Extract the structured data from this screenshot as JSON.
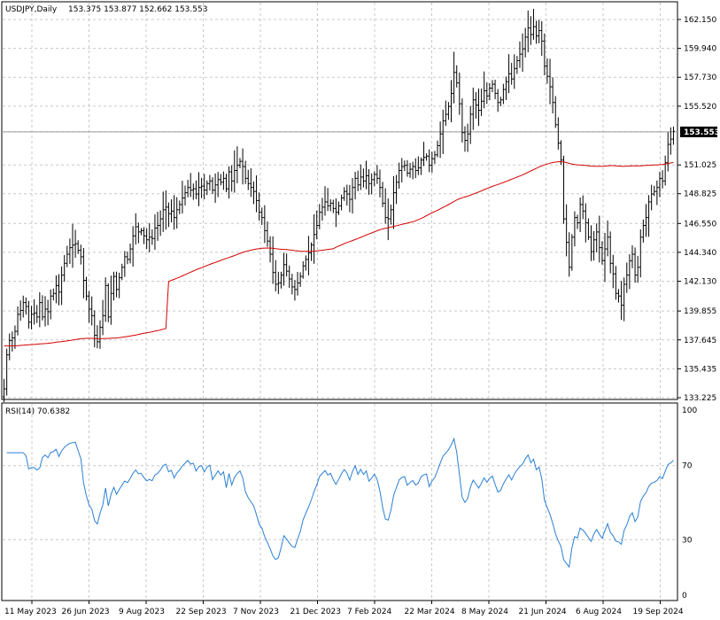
{
  "header": {
    "symbol": "USDJPY,Daily",
    "ohlc": "153.375 153.877 152.662 153.553"
  },
  "price_badge": "153.553",
  "rsi_header": "RSI(14) 70.6382",
  "colors": {
    "candle": "#000000",
    "ma": "#d40000",
    "rsi": "#2a7fd4",
    "grid": "#c8c8c8",
    "badge_bg": "#000000",
    "badge_fg": "#ffffff",
    "price_line": "#9a9a9a"
  },
  "chart_data": [
    {
      "type": "line",
      "title": "USDJPY,Daily",
      "subtype": "ohlc-bars",
      "price_ticks": [
        "162.150",
        "159.940",
        "157.730",
        "155.520",
        "153.553",
        "151.025",
        "148.825",
        "146.550",
        "144.340",
        "142.130",
        "139.855",
        "137.645",
        "135.435",
        "133.225"
      ],
      "x_tick_labels": [
        "11 May 2023",
        "26 Jun 2023",
        "9 Aug 2023",
        "22 Sep 2023",
        "7 Nov 2023",
        "21 Dec 2023",
        "7 Feb 2024",
        "22 Mar 2024",
        "8 May 2024",
        "21 Jun 2024",
        "6 Aug 2024",
        "19 Sep 2024"
      ],
      "ylim": [
        133.225,
        162.15
      ],
      "last_price": 153.553,
      "closes": [
        133.9,
        136.5,
        137.6,
        137.8,
        138.3,
        139.6,
        139.9,
        140.5,
        140.2,
        139.0,
        139.6,
        139.7,
        139.4,
        140.5,
        139.4,
        140.0,
        139.8,
        141.0,
        141.2,
        141.8,
        141.3,
        142.6,
        143.5,
        144.2,
        144.7,
        144.9,
        145.0,
        144.5,
        144.0,
        142.2,
        141.0,
        140.0,
        139.5,
        138.0,
        137.5,
        138.6,
        139.5,
        141.8,
        139.4,
        141.2,
        142.5,
        141.5,
        142.4,
        143.2,
        144.0,
        143.8,
        144.6,
        145.6,
        146.3,
        145.9,
        146.0,
        145.6,
        145.3,
        145.5,
        145.4,
        146.2,
        146.4,
        146.9,
        147.6,
        147.8,
        147.3,
        147.5,
        147.0,
        147.6,
        148.0,
        148.5,
        148.9,
        149.3,
        149.1,
        149.2,
        148.8,
        149.3,
        149.4,
        149.1,
        149.6,
        149.8,
        149.1,
        149.5,
        149.9,
        149.7,
        150.0,
        149.2,
        150.5,
        149.8,
        150.6,
        151.0,
        151.3,
        150.9,
        150.0,
        149.6,
        149.3,
        149.0,
        148.3,
        147.4,
        147.0,
        146.0,
        145.2,
        144.2,
        142.8,
        141.9,
        142.0,
        142.6,
        143.4,
        142.9,
        142.3,
        141.7,
        141.5,
        142.0,
        142.5,
        143.3,
        143.8,
        144.3,
        144.9,
        145.7,
        146.4,
        147.4,
        147.8,
        148.2,
        147.9,
        148.1,
        147.7,
        147.4,
        147.9,
        148.5,
        149.0,
        148.8,
        148.4,
        149.3,
        150.0,
        149.5,
        150.1,
        149.8,
        150.2,
        149.6,
        149.9,
        150.3,
        150.0,
        149.3,
        148.1,
        147.0,
        146.9,
        147.6,
        148.9,
        149.7,
        150.6,
        150.9,
        151.0,
        150.4,
        150.7,
        150.9,
        150.6,
        150.8,
        151.4,
        151.6,
        151.7,
        151.0,
        151.5,
        151.8,
        152.5,
        153.4,
        154.4,
        154.9,
        155.5,
        156.5,
        158.1,
        157.3,
        155.7,
        153.5,
        152.9,
        153.4,
        154.9,
        156.0,
        155.6,
        155.2,
        155.9,
        156.7,
        156.3,
        156.9,
        157.2,
        156.5,
        155.8,
        156.0,
        156.8,
        157.4,
        158.0,
        157.6,
        158.4,
        159.0,
        159.5,
        159.9,
        160.8,
        161.5,
        161.0,
        161.6,
        160.9,
        161.3,
        160.5,
        158.6,
        157.8,
        157.0,
        155.8,
        154.1,
        152.7,
        151.4,
        146.9,
        145.1,
        143.2,
        145.5,
        147.0,
        146.6,
        148.0,
        147.5,
        146.6,
        145.5,
        144.4,
        145.3,
        145.9,
        144.7,
        143.7,
        144.6,
        145.5,
        143.5,
        142.7,
        141.2,
        141.0,
        140.3,
        141.9,
        142.6,
        143.7,
        144.2,
        142.6,
        143.2,
        145.5,
        146.4,
        147.0,
        148.2,
        148.8,
        149.0,
        149.3,
        150.0,
        149.8,
        151.2,
        152.6,
        153.0,
        153.6
      ]
    },
    {
      "type": "line",
      "title": "RSI(14) 70.6382",
      "ylim": [
        0,
        100
      ],
      "level_labels": [
        "100",
        "70",
        "30",
        "0"
      ]
    }
  ]
}
